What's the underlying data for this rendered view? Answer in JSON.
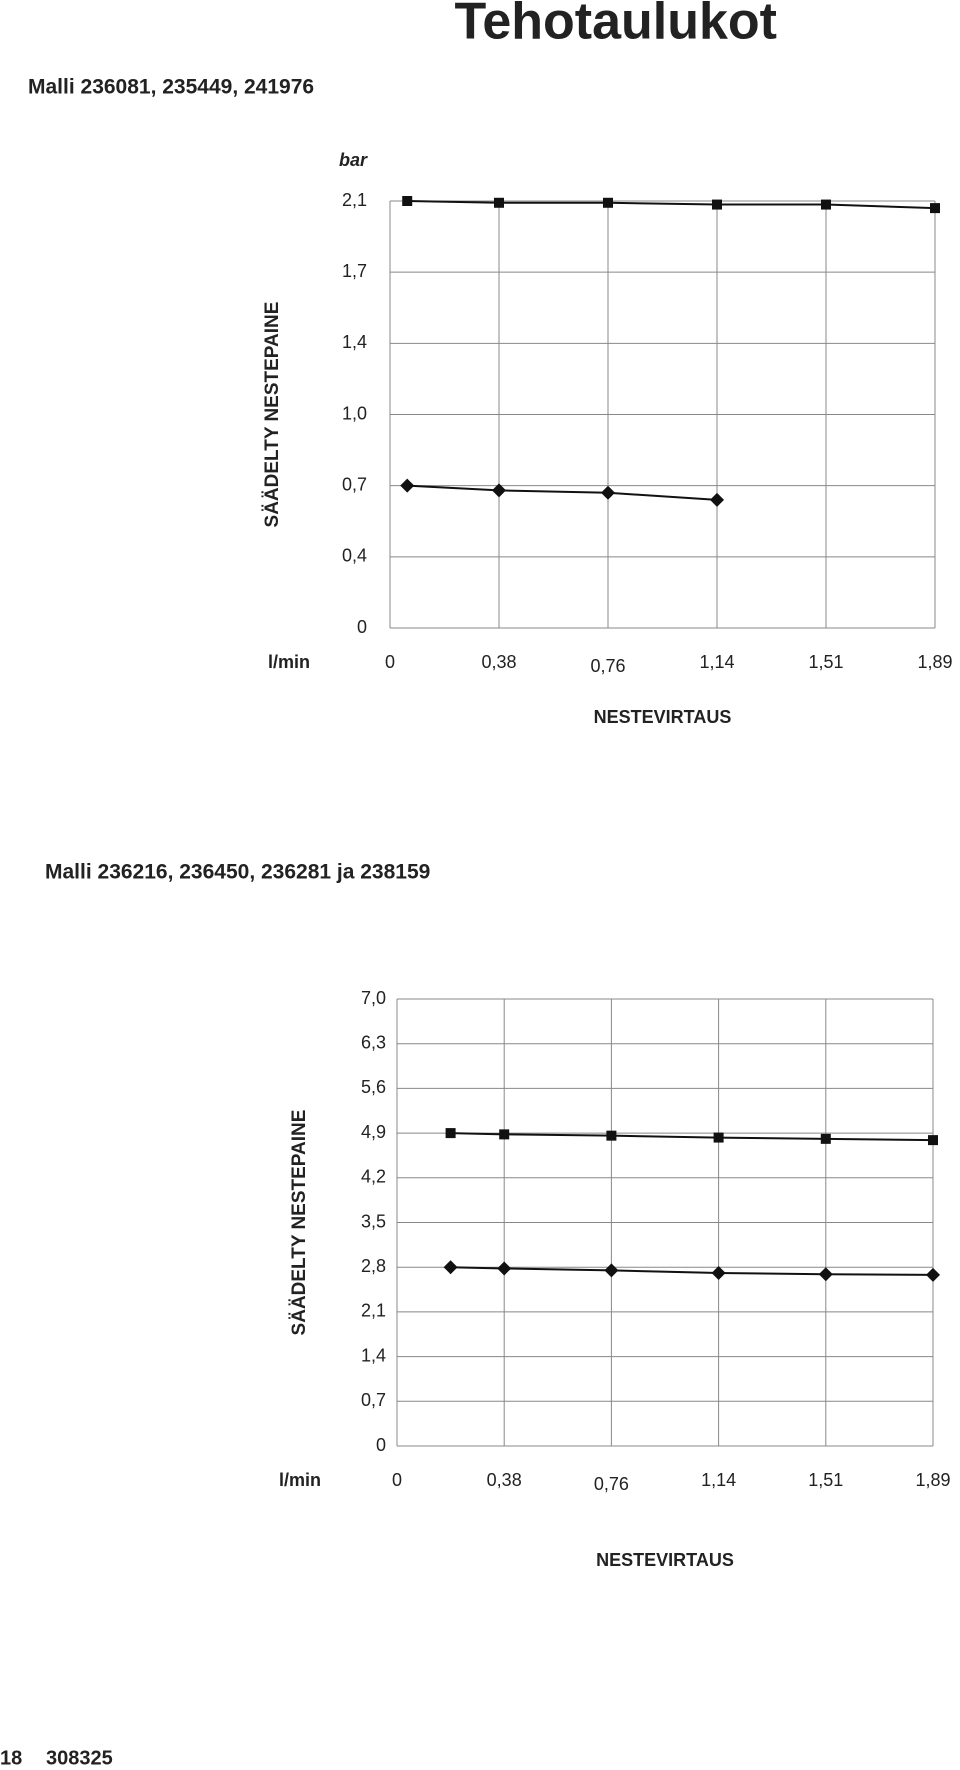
{
  "page": {
    "title": "Tehotaulukot",
    "footer": {
      "page": "18",
      "document": "308325"
    }
  },
  "chart_data": [
    {
      "type": "line",
      "title": "Malli 236081, 235449, 241976",
      "y_label": "SÄÄDELTY NESTEPAINE",
      "y_unit": "bar",
      "x_unit": "l/min",
      "x_label": "NESTEVIRTAUS",
      "x": [
        0.06,
        0.38,
        0.76,
        1.14,
        1.51,
        1.89
      ],
      "series": [
        {
          "marker": "square",
          "color": "#111111",
          "values": [
            2.1,
            2.09,
            2.09,
            2.08,
            2.08,
            2.06
          ]
        },
        {
          "marker": "diamond",
          "color": "#111111",
          "values": [
            0.7,
            0.68,
            0.67,
            0.64,
            null,
            null
          ]
        }
      ],
      "xlim": [
        0,
        1.89
      ],
      "xticks": [
        0,
        {
          "value": 0.38,
          "label": "0,38"
        },
        {
          "value": 0.76,
          "label": "0,76"
        },
        {
          "value": 1.14,
          "label": "1,14"
        },
        {
          "value": 1.51,
          "label": "1,51"
        },
        {
          "value": 1.89,
          "label": "1,89"
        }
      ],
      "ylim": [
        0,
        2.1
      ],
      "yticks": [
        0,
        {
          "value": 0.4,
          "label": "0,4"
        },
        {
          "value": 0.7,
          "label": "0,7"
        },
        {
          "value": 1.0,
          "label": "1,0"
        },
        {
          "value": 1.4,
          "label": "1,4"
        },
        {
          "value": 1.7,
          "label": "1,7"
        },
        {
          "value": 2.1,
          "label": "2,1"
        }
      ],
      "grid": true
    },
    {
      "type": "line",
      "title": "Malli 236216, 236450, 236281 ja 238159",
      "y_label": "SÄÄDELTY NESTEPAINE",
      "x_unit": "l/min",
      "x_label": "NESTEVIRTAUS",
      "x": [
        0.19,
        0.38,
        0.76,
        1.14,
        1.51,
        1.89
      ],
      "series": [
        {
          "marker": "square",
          "color": "#111111",
          "values": [
            4.9,
            4.88,
            4.86,
            4.83,
            4.81,
            4.79
          ]
        },
        {
          "marker": "diamond",
          "color": "#111111",
          "values": [
            2.8,
            2.78,
            2.75,
            2.71,
            2.69,
            2.68
          ]
        }
      ],
      "xlim": [
        0,
        1.89
      ],
      "xticks": [
        0,
        {
          "value": 0.38,
          "label": "0,38"
        },
        {
          "value": 0.76,
          "label": "0,76"
        },
        {
          "value": 1.14,
          "label": "1,14"
        },
        {
          "value": 1.51,
          "label": "1,51"
        },
        {
          "value": 1.89,
          "label": "1,89"
        }
      ],
      "ylim": [
        0,
        7
      ],
      "yticks": [
        0,
        {
          "value": 0.7,
          "label": "0,7"
        },
        {
          "value": 1.4,
          "label": "1,4"
        },
        {
          "value": 2.1,
          "label": "2,1"
        },
        {
          "value": 2.8,
          "label": "2,8"
        },
        {
          "value": 3.5,
          "label": "3,5"
        },
        {
          "value": 4.2,
          "label": "4,2"
        },
        {
          "value": 4.9,
          "label": "4,9"
        },
        {
          "value": 5.6,
          "label": "5,6"
        },
        {
          "value": 6.3,
          "label": "6,3"
        },
        {
          "value": 7,
          "label": "7,0"
        }
      ],
      "grid": true
    }
  ]
}
